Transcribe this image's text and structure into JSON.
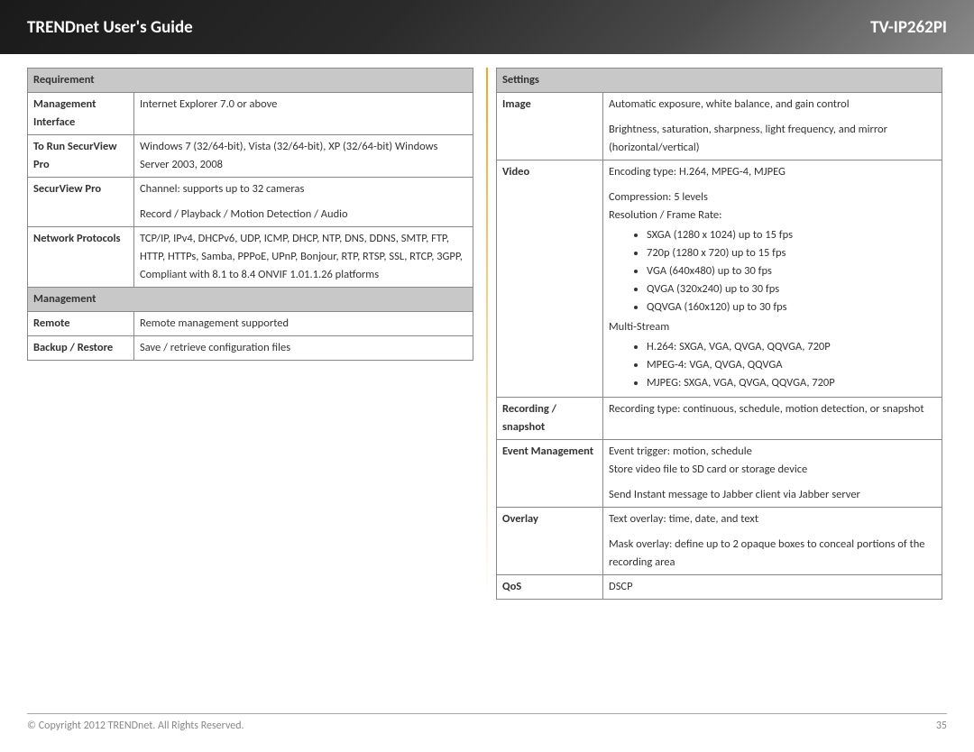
{
  "header": {
    "left": "TRENDnet User's Guide",
    "right": "TV-IP262PI"
  },
  "footer": {
    "copyright": "© Copyright 2012 TRENDnet. All Rights Reserved.",
    "page": "35"
  },
  "leftTable": {
    "sections": [
      {
        "header": "Requirement",
        "rows": [
          {
            "label": "Management Interface",
            "value": "Internet Explorer 7.0 or above"
          },
          {
            "label": "To Run SecurView Pro",
            "value": "Windows 7 (32/64-bit), Vista (32/64-bit),  XP (32/64-bit) Windows Server 2003, 2008"
          },
          {
            "label": "SecurView Pro",
            "value": "Channel: supports up to 32 cameras\n\nRecord / Playback / Motion Detection / Audio"
          },
          {
            "label": "Network Protocols",
            "value": "TCP/IP, IPv4, DHCPv6, UDP, ICMP, DHCP, NTP, DNS, DDNS, SMTP, FTP, HTTP, HTTPs, Samba, PPPoE, UPnP, Bonjour, RTP, RTSP, SSL, RTCP, 3GPP, Compliant with 8.1 to 8.4 ONVIF 1.01.1.26 platforms"
          }
        ]
      },
      {
        "header": "Management",
        "rows": [
          {
            "label": "Remote",
            "value": "Remote management supported"
          },
          {
            "label": "Backup / Restore",
            "value": "Save / retrieve configuration files"
          }
        ]
      }
    ]
  },
  "rightTable": {
    "header": "Settings",
    "image": {
      "label": "Image",
      "p1": "Automatic exposure, white balance, and gain control",
      "p2": "Brightness, saturation, sharpness, light frequency, and mirror (horizontal/vertical)"
    },
    "video": {
      "label": "Video",
      "p1": "Encoding type: H.264, MPEG-4, MJPEG",
      "p2": "Compression: 5 levels",
      "p3": "Resolution / Frame Rate:",
      "res": [
        "SXGA (1280 x 1024) up to 15 fps",
        "720p (1280 x 720) up to 15 fps",
        "VGA (640x480) up to 30 fps",
        "QVGA (320x240) up to 30 fps",
        "QQVGA (160x120) up to 30 fps"
      ],
      "p4": "Multi-Stream",
      "multi": [
        "H.264: SXGA, VGA, QVGA, QQVGA, 720P",
        "MPEG-4: VGA, QVGA, QQVGA",
        "MJPEG: SXGA, VGA, QVGA, QQVGA, 720P"
      ]
    },
    "recording": {
      "label": "Recording / snapshot",
      "value": "Recording type: continuous, schedule, motion detection, or snapshot"
    },
    "event": {
      "label": "Event Management",
      "p1": "Event trigger: motion, schedule",
      "p2": "Store video file to SD card or storage device",
      "p3": "Send Instant message to Jabber client via Jabber server"
    },
    "overlay": {
      "label": "Overlay",
      "p1": "Text overlay: time, date, and text",
      "p2": "Mask overlay: define up to 2 opaque boxes to conceal portions of the recording area"
    },
    "qos": {
      "label": "QoS",
      "value": "DSCP"
    }
  }
}
